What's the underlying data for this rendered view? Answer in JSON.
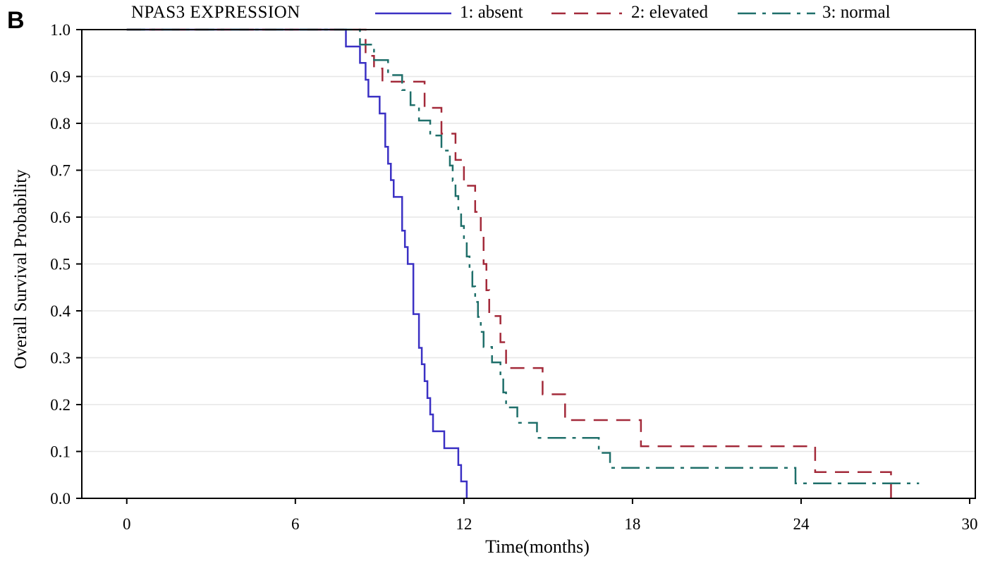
{
  "panel_label": "B",
  "chart_data": {
    "type": "line",
    "step": true,
    "legend_title": "NPAS3  EXPRESSION",
    "legend_position": "top",
    "xlabel": "Time(months)",
    "ylabel": "Overall Survival Probability",
    "xlim": [
      -1.6,
      30.2
    ],
    "ylim": [
      0,
      1.0
    ],
    "x_ticks": [
      0,
      6,
      12,
      18,
      24,
      30
    ],
    "y_ticks": [
      0.0,
      0.1,
      0.2,
      0.3,
      0.4,
      0.5,
      0.6,
      0.7,
      0.8,
      0.9,
      1.0
    ],
    "y_tick_labels": [
      "0.0",
      "0.1",
      "0.2",
      "0.3",
      "0.4",
      "0.5",
      "0.6",
      "0.7",
      "0.8",
      "0.9",
      "1.0"
    ],
    "grid": "horizontal",
    "series": [
      {
        "name": "1: absent",
        "color": "#3b31c4",
        "dash": "solid",
        "points": [
          [
            0,
            1.0
          ],
          [
            7.8,
            0.964
          ],
          [
            8.3,
            0.929
          ],
          [
            8.5,
            0.893
          ],
          [
            8.6,
            0.857
          ],
          [
            9.0,
            0.821
          ],
          [
            9.2,
            0.75
          ],
          [
            9.3,
            0.714
          ],
          [
            9.4,
            0.679
          ],
          [
            9.5,
            0.643
          ],
          [
            9.8,
            0.571
          ],
          [
            9.9,
            0.536
          ],
          [
            10.0,
            0.5
          ],
          [
            10.2,
            0.393
          ],
          [
            10.4,
            0.321
          ],
          [
            10.5,
            0.286
          ],
          [
            10.6,
            0.25
          ],
          [
            10.7,
            0.214
          ],
          [
            10.8,
            0.179
          ],
          [
            10.9,
            0.143
          ],
          [
            11.3,
            0.107
          ],
          [
            11.8,
            0.071
          ],
          [
            11.9,
            0.036
          ],
          [
            12.1,
            0.0
          ]
        ]
      },
      {
        "name": "2: elevated",
        "color": "#a32a3a",
        "dash": "dashed",
        "points": [
          [
            0,
            1.0
          ],
          [
            8.5,
            0.944
          ],
          [
            8.8,
            0.917
          ],
          [
            9.1,
            0.889
          ],
          [
            10.6,
            0.833
          ],
          [
            11.2,
            0.778
          ],
          [
            11.7,
            0.722
          ],
          [
            12.0,
            0.667
          ],
          [
            12.4,
            0.611
          ],
          [
            12.6,
            0.556
          ],
          [
            12.7,
            0.5
          ],
          [
            12.8,
            0.444
          ],
          [
            12.9,
            0.389
          ],
          [
            13.3,
            0.333
          ],
          [
            13.5,
            0.278
          ],
          [
            14.8,
            0.222
          ],
          [
            15.6,
            0.167
          ],
          [
            18.3,
            0.111
          ],
          [
            24.5,
            0.056
          ],
          [
            27.2,
            0.0
          ]
        ]
      },
      {
        "name": "3: normal",
        "color": "#1f6f6a",
        "dash": "dashdot",
        "points": [
          [
            0,
            1.0
          ],
          [
            8.3,
            0.968
          ],
          [
            8.8,
            0.935
          ],
          [
            9.3,
            0.903
          ],
          [
            9.8,
            0.871
          ],
          [
            10.1,
            0.839
          ],
          [
            10.4,
            0.806
          ],
          [
            10.8,
            0.774
          ],
          [
            11.2,
            0.742
          ],
          [
            11.5,
            0.71
          ],
          [
            11.6,
            0.677
          ],
          [
            11.7,
            0.645
          ],
          [
            11.8,
            0.613
          ],
          [
            11.9,
            0.581
          ],
          [
            12.0,
            0.548
          ],
          [
            12.1,
            0.516
          ],
          [
            12.2,
            0.484
          ],
          [
            12.3,
            0.452
          ],
          [
            12.4,
            0.419
          ],
          [
            12.5,
            0.387
          ],
          [
            12.6,
            0.355
          ],
          [
            12.7,
            0.323
          ],
          [
            13.0,
            0.29
          ],
          [
            13.3,
            0.258
          ],
          [
            13.4,
            0.226
          ],
          [
            13.5,
            0.194
          ],
          [
            13.9,
            0.161
          ],
          [
            14.6,
            0.129
          ],
          [
            16.8,
            0.097
          ],
          [
            17.2,
            0.065
          ],
          [
            23.8,
            0.032
          ],
          [
            28.2,
            0.032
          ]
        ]
      }
    ]
  }
}
